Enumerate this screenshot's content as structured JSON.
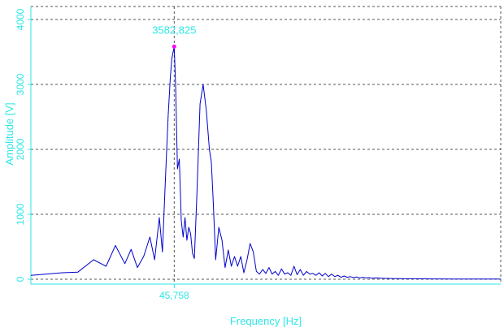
{
  "chart_data": {
    "type": "line",
    "xlabel": "Frequency [Hz]",
    "ylabel": "Amplitude [V]",
    "ylim": [
      0,
      4200
    ],
    "y_ticks": [
      0,
      1000,
      2000,
      3000,
      4000
    ],
    "x_ticks": [
      45.758
    ],
    "x_tick_label": "45,758",
    "grid": true,
    "peak": {
      "x": 45.758,
      "y": 3582.825,
      "label": "3582,825"
    },
    "series": [
      {
        "color": "#0000cc",
        "x": [
          0,
          5,
          10,
          15,
          20,
          24,
          27,
          30,
          32,
          34,
          36,
          38,
          39.5,
          41,
          42,
          43,
          43.8,
          44.5,
          45,
          45.758,
          46.2,
          46.8,
          47.4,
          48,
          48.6,
          49.2,
          49.8,
          50.4,
          51,
          51.6,
          52.2,
          53,
          54,
          55,
          56,
          57,
          57.6,
          58.2,
          59,
          60,
          61,
          62,
          63,
          64,
          65,
          66,
          67,
          68,
          69,
          70,
          71,
          72,
          73,
          74,
          75,
          76,
          77,
          78,
          79,
          80,
          81,
          82,
          83,
          84,
          85,
          86,
          87,
          88,
          89,
          90,
          91,
          92,
          93,
          94,
          95,
          96,
          97,
          98,
          99,
          100,
          101,
          102,
          103,
          104,
          105,
          106,
          107,
          108,
          109,
          110,
          112,
          114,
          116,
          118,
          120,
          122,
          124,
          126,
          128,
          130,
          135,
          140,
          145,
          150
        ],
        "values": [
          60,
          80,
          100,
          110,
          300,
          200,
          520,
          240,
          460,
          180,
          350,
          650,
          300,
          950,
          420,
          1600,
          2500,
          3100,
          3400,
          3582,
          3000,
          1700,
          1850,
          900,
          650,
          950,
          600,
          800,
          700,
          400,
          320,
          1300,
          2700,
          3000,
          2600,
          2000,
          1800,
          1200,
          300,
          800,
          600,
          180,
          450,
          200,
          350,
          200,
          350,
          100,
          300,
          550,
          420,
          120,
          80,
          150,
          90,
          180,
          80,
          120,
          60,
          160,
          80,
          100,
          60,
          200,
          70,
          150,
          60,
          120,
          80,
          90,
          60,
          100,
          50,
          90,
          40,
          80,
          40,
          60,
          30,
          50,
          30,
          40,
          25,
          35,
          20,
          30,
          20,
          25,
          15,
          20,
          15,
          12,
          10,
          10,
          8,
          8,
          6,
          6,
          5,
          5,
          4,
          3,
          3,
          2
        ]
      }
    ]
  }
}
